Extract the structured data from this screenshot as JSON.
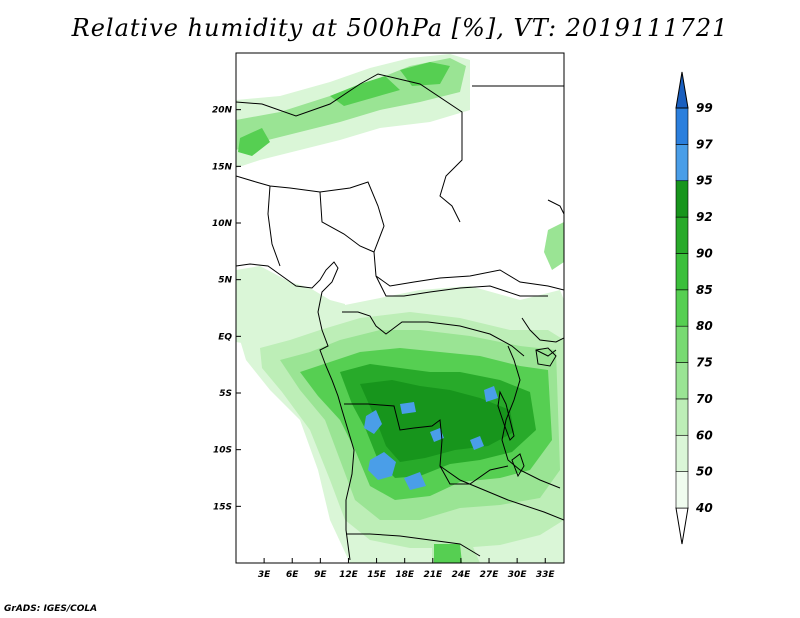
{
  "title": "Relative humidity at 500hPa [%], VT: 2019111721",
  "credit": "GrADS: IGES/COLA",
  "map": {
    "lon_range": [
      0,
      35
    ],
    "lat_range": [
      -20,
      25
    ],
    "lat_ticks": [
      {
        "value": 20,
        "label": "20N"
      },
      {
        "value": 15,
        "label": "15N"
      },
      {
        "value": 10,
        "label": "10N"
      },
      {
        "value": 5,
        "label": "5N"
      },
      {
        "value": 0,
        "label": "EQ"
      },
      {
        "value": -5,
        "label": "5S"
      },
      {
        "value": -10,
        "label": "10S"
      },
      {
        "value": -15,
        "label": "15S"
      }
    ],
    "lon_ticks": [
      {
        "value": 3,
        "label": "3E"
      },
      {
        "value": 6,
        "label": "6E"
      },
      {
        "value": 9,
        "label": "9E"
      },
      {
        "value": 12,
        "label": "12E"
      },
      {
        "value": 15,
        "label": "15E"
      },
      {
        "value": 18,
        "label": "18E"
      },
      {
        "value": 21,
        "label": "21E"
      },
      {
        "value": 24,
        "label": "24E"
      },
      {
        "value": 27,
        "label": "27E"
      },
      {
        "value": 30,
        "label": "30E"
      },
      {
        "value": 33,
        "label": "33E"
      }
    ]
  },
  "colorbar": {
    "levels": [
      {
        "label": "40",
        "color": "#f0fcef"
      },
      {
        "label": "50",
        "color": "#daf6d7"
      },
      {
        "label": "60",
        "color": "#bdeeb7"
      },
      {
        "label": "70",
        "color": "#9ae494"
      },
      {
        "label": "75",
        "color": "#78da72"
      },
      {
        "label": "80",
        "color": "#56cf52"
      },
      {
        "label": "85",
        "color": "#3bbf3b"
      },
      {
        "label": "90",
        "color": "#28aa2a"
      },
      {
        "label": "92",
        "color": "#17951c"
      },
      {
        "label": "95",
        "color": "#4a9ee8"
      },
      {
        "label": "97",
        "color": "#2b7fdd"
      },
      {
        "label": "99",
        "color": "#1a5fbf"
      }
    ],
    "under_color": "#ffffff",
    "over_color": "#1a5fbf"
  }
}
